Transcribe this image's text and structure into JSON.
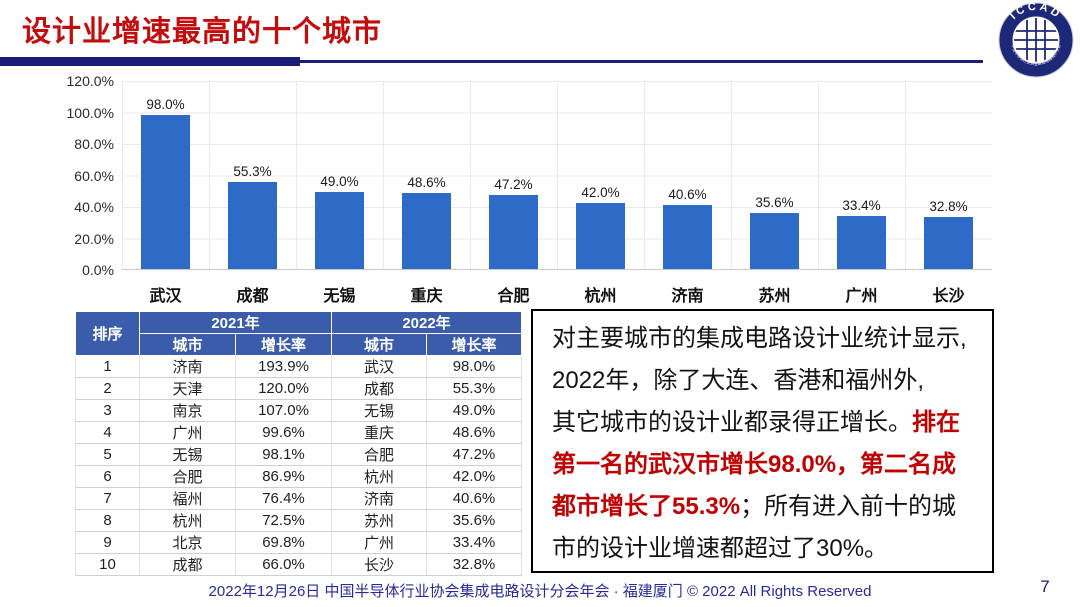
{
  "slide": {
    "title": "设计业增速最高的十个城市",
    "page_number": "7",
    "footer": "2022年12月26日 中国半导体行业协会集成电路设计分会年会 · 福建厦门 © 2022 All Rights Reserved"
  },
  "logo": {
    "text": "ICCAD",
    "ring_text": "中国半导体行业协会集成电路设计分会"
  },
  "colors": {
    "title_red": "#c30d0d",
    "rule_navy": "#1b1b78",
    "bar_blue": "#2e6ac8",
    "table_header_blue": "#3a5caa",
    "commentary_red": "#c00000",
    "footer_navy": "#2a2a99"
  },
  "chart_data": {
    "type": "bar",
    "categories": [
      "武汉",
      "成都",
      "无锡",
      "重庆",
      "合肥",
      "杭州",
      "济南",
      "苏州",
      "广州",
      "长沙"
    ],
    "values": [
      98.0,
      55.3,
      49.0,
      48.6,
      47.2,
      42.0,
      40.6,
      35.6,
      33.4,
      32.8
    ],
    "value_labels": [
      "98.0%",
      "55.3%",
      "49.0%",
      "48.6%",
      "47.2%",
      "42.0%",
      "40.6%",
      "35.6%",
      "33.4%",
      "32.8%"
    ],
    "title": "",
    "xlabel": "",
    "ylabel": "",
    "ylim": [
      0,
      120
    ],
    "ytick_labels": [
      "120.0%",
      "100.0%",
      "80.0%",
      "60.0%",
      "40.0%",
      "20.0%",
      "0.0%"
    ],
    "grid": true,
    "legend": false
  },
  "table": {
    "rank_header": "排序",
    "year_headers": [
      "2021年",
      "2022年"
    ],
    "sub_headers": [
      "城市",
      "增长率",
      "城市",
      "增长率"
    ],
    "rows": [
      [
        "1",
        "济南",
        "193.9%",
        "武汉",
        "98.0%"
      ],
      [
        "2",
        "天津",
        "120.0%",
        "成都",
        "55.3%"
      ],
      [
        "3",
        "南京",
        "107.0%",
        "无锡",
        "49.0%"
      ],
      [
        "4",
        "广州",
        "99.6%",
        "重庆",
        "48.6%"
      ],
      [
        "5",
        "无锡",
        "98.1%",
        "合肥",
        "47.2%"
      ],
      [
        "6",
        "合肥",
        "86.9%",
        "杭州",
        "42.0%"
      ],
      [
        "7",
        "福州",
        "76.4%",
        "济南",
        "40.6%"
      ],
      [
        "8",
        "杭州",
        "72.5%",
        "苏州",
        "35.6%"
      ],
      [
        "9",
        "北京",
        "69.8%",
        "广州",
        "33.4%"
      ],
      [
        "10",
        "成都",
        "66.0%",
        "长沙",
        "32.8%"
      ]
    ]
  },
  "commentary": {
    "part1": "对主要城市的集成电路设计业统计显示,\n2022年，除了大连、香港和福州外,\n其它城市的设计业都录得正增长。",
    "part2_red": "排在\n第一名的武汉市增长98.0%，第二名成\n都市增长了55.3%",
    "part3": "；所有进入前十的城市的设计业增速都超过了30%。"
  }
}
